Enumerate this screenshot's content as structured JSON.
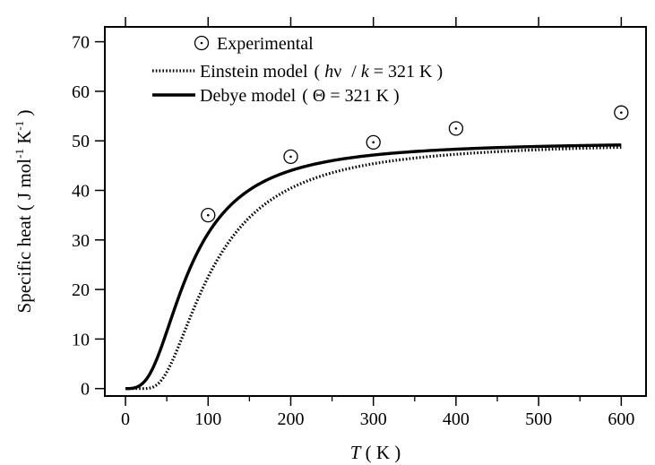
{
  "chart_data": {
    "type": "line",
    "title": "",
    "xlabel": {
      "italic": "T",
      "rest": " ( K )"
    },
    "ylabel": {
      "main": "Specific heat ( J mol",
      "sup1": "-1",
      "mid": " K",
      "sup2": "-1",
      "end": " )"
    },
    "xlim": [
      -25,
      630
    ],
    "ylim": [
      -1.5,
      73
    ],
    "xticks": [
      0,
      100,
      200,
      300,
      400,
      500,
      600
    ],
    "yticks": [
      0,
      10,
      20,
      30,
      40,
      50,
      60,
      70
    ],
    "minor_x_tick_step": 50,
    "grid": false,
    "legend_position": "top-left",
    "gas_constant_3R": 49.88,
    "einstein_temperature_K": 321,
    "debye_temperature_K": 321,
    "legend": {
      "experimental": "Experimental",
      "einstein": {
        "prefix": "Einstein model",
        "open": "(",
        "h": "h",
        "nu": "ν",
        "slash": "/",
        "k": "k",
        "value": "= 321 K",
        "close": ")"
      },
      "debye": {
        "prefix": "Debye model",
        "open": "(",
        "theta": "Θ",
        "value": "= 321 K",
        "close": ")"
      }
    },
    "series": [
      {
        "name": "Experimental",
        "style": "circle-dot-markers",
        "x": [
          100,
          200,
          300,
          400,
          600
        ],
        "y": [
          35.0,
          46.8,
          49.7,
          52.5,
          55.7
        ]
      },
      {
        "name": "Einstein model",
        "style": "dotted-line",
        "x": [
          0,
          600
        ]
      },
      {
        "name": "Debye model",
        "style": "solid-line",
        "x": [
          0,
          600
        ]
      }
    ]
  }
}
